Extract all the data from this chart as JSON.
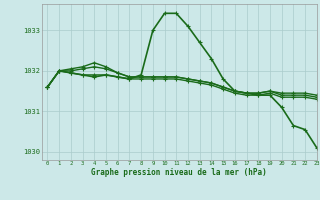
{
  "xlabel": "Graphe pression niveau de la mer (hPa)",
  "xlim": [
    -0.5,
    23
  ],
  "ylim": [
    1029.8,
    1033.65
  ],
  "yticks": [
    1030,
    1031,
    1032,
    1033
  ],
  "xticks": [
    0,
    1,
    2,
    3,
    4,
    5,
    6,
    7,
    8,
    9,
    10,
    11,
    12,
    13,
    14,
    15,
    16,
    17,
    18,
    19,
    20,
    21,
    22,
    23
  ],
  "bg_color": "#cce8e8",
  "grid_color": "#aacccc",
  "line_color": "#1a6b1a",
  "curves": [
    [
      1031.6,
      1032.0,
      1031.95,
      1031.9,
      1031.85,
      1031.9,
      1031.85,
      1031.8,
      1031.9,
      1033.0,
      1033.42,
      1033.42,
      1033.1,
      1032.7,
      1032.3,
      1031.8,
      1031.5,
      1031.45,
      1031.4,
      1031.4,
      1031.1,
      1030.65,
      1030.55,
      1030.1
    ],
    [
      1031.6,
      1032.0,
      1032.05,
      1032.1,
      1032.2,
      1032.1,
      1031.95,
      1031.85,
      1031.85,
      1031.85,
      1031.85,
      1031.85,
      1031.8,
      1031.75,
      1031.7,
      1031.6,
      1031.5,
      1031.45,
      1031.45,
      1031.5,
      1031.45,
      1031.45,
      1031.45,
      1031.4
    ],
    [
      1031.6,
      1032.0,
      1032.0,
      1032.05,
      1032.1,
      1032.05,
      1031.95,
      1031.85,
      1031.85,
      1031.85,
      1031.85,
      1031.85,
      1031.8,
      1031.75,
      1031.7,
      1031.6,
      1031.5,
      1031.45,
      1031.45,
      1031.5,
      1031.4,
      1031.4,
      1031.4,
      1031.35
    ],
    [
      1031.6,
      1032.0,
      1031.95,
      1031.9,
      1031.9,
      1031.9,
      1031.85,
      1031.8,
      1031.8,
      1031.8,
      1031.8,
      1031.8,
      1031.75,
      1031.7,
      1031.65,
      1031.55,
      1031.45,
      1031.4,
      1031.4,
      1031.45,
      1031.35,
      1031.35,
      1031.35,
      1031.3
    ]
  ],
  "linewidths": [
    1.2,
    1.0,
    1.0,
    1.0
  ],
  "marker_size": 3.5,
  "markeredgewidth": 0.8
}
